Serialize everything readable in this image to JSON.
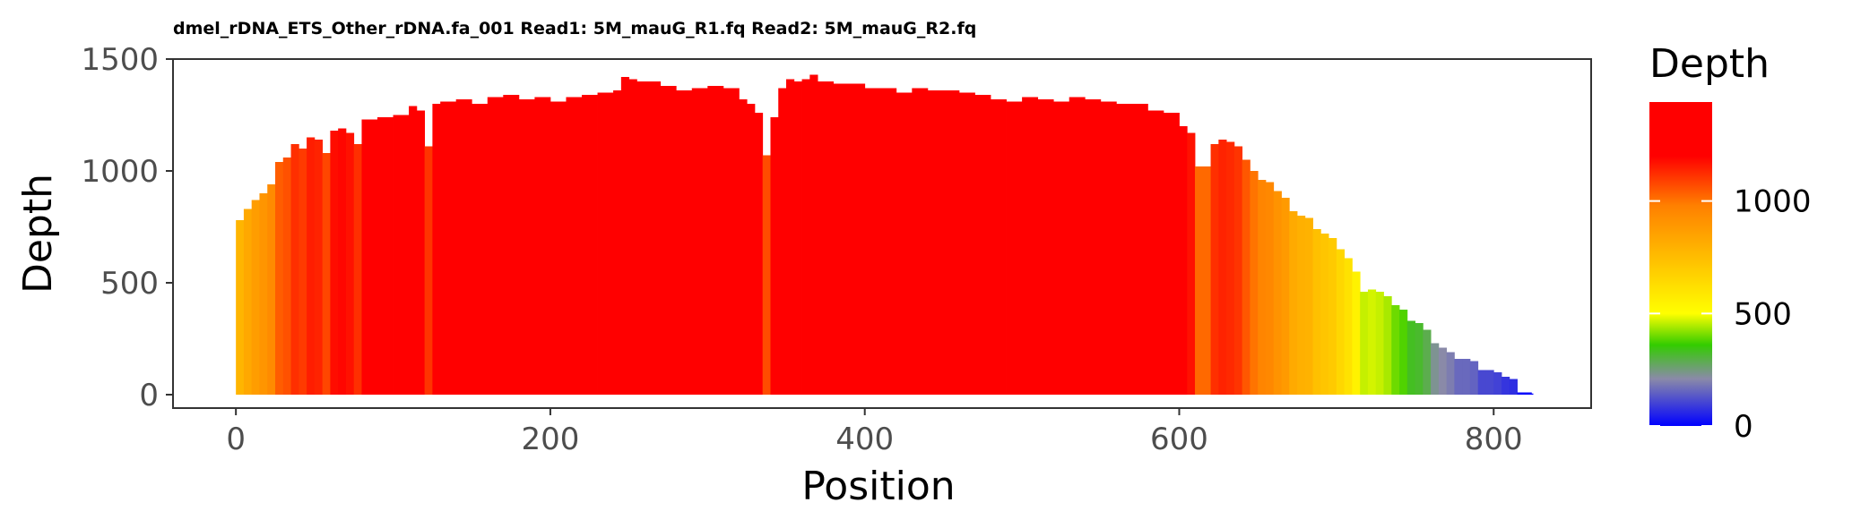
{
  "chart_data": {
    "type": "bar",
    "title": "dmel_rDNA_ETS_Other_rDNA.fa_001 Read1: 5M_mauG_R1.fq Read2: 5M_mauG_R2.fq",
    "xlabel": "Position",
    "ylabel": "Depth",
    "xlim": [
      -40,
      862
    ],
    "ylim": [
      -60,
      1500
    ],
    "x_ticks": [
      0,
      200,
      400,
      600,
      800
    ],
    "y_ticks": [
      0,
      500,
      1000,
      1500
    ],
    "x_tick_labels": [
      "0",
      "200",
      "400",
      "600",
      "800"
    ],
    "y_tick_labels": [
      "0",
      "500",
      "1000",
      "1500"
    ],
    "grid": false,
    "legend": {
      "title": "Depth",
      "placement": "right",
      "type": "colorbar",
      "range": [
        0,
        1440
      ],
      "ticks": [
        0,
        500,
        1000
      ],
      "tick_labels": [
        "0",
        "500",
        "1000"
      ],
      "color_stops": [
        {
          "value": 0,
          "color": "#0000ff"
        },
        {
          "value": 210,
          "color": "#8a8aa8"
        },
        {
          "value": 360,
          "color": "#33cc00"
        },
        {
          "value": 500,
          "color": "#ffff00"
        },
        {
          "value": 980,
          "color": "#ff8000"
        },
        {
          "value": 1200,
          "color": "#ff0000"
        },
        {
          "value": 1440,
          "color": "#ff0000"
        }
      ]
    },
    "series": [
      {
        "x": [
          0,
          5,
          10,
          15,
          20,
          25,
          30,
          35,
          40,
          45,
          50,
          55,
          60,
          65,
          70,
          75,
          80,
          90,
          100,
          110,
          115,
          120,
          125,
          130,
          140,
          150,
          160,
          170,
          180,
          190,
          200,
          210,
          220,
          230,
          240,
          245,
          250,
          255,
          260,
          270,
          280,
          290,
          300,
          310,
          320,
          325,
          330,
          335,
          340,
          345,
          350,
          355,
          360,
          365,
          370,
          380,
          390,
          400,
          410,
          420,
          430,
          440,
          450,
          460,
          470,
          480,
          490,
          500,
          510,
          520,
          530,
          540,
          550,
          560,
          570,
          580,
          590,
          600,
          605,
          610,
          615,
          620,
          625,
          630,
          635,
          640,
          645,
          650,
          655,
          660,
          665,
          670,
          675,
          680,
          685,
          690,
          695,
          700,
          705,
          710,
          715,
          720,
          725,
          730,
          735,
          740,
          745,
          750,
          755,
          760,
          765,
          770,
          775,
          780,
          785,
          790,
          795,
          800,
          805,
          810,
          815,
          820,
          824
        ],
        "values": [
          780,
          830,
          870,
          900,
          940,
          1040,
          1060,
          1120,
          1100,
          1150,
          1140,
          1080,
          1180,
          1190,
          1170,
          1120,
          1230,
          1240,
          1250,
          1290,
          1270,
          1110,
          1300,
          1310,
          1320,
          1300,
          1330,
          1340,
          1320,
          1330,
          1310,
          1330,
          1340,
          1350,
          1360,
          1420,
          1410,
          1400,
          1400,
          1380,
          1360,
          1370,
          1380,
          1370,
          1320,
          1300,
          1260,
          1070,
          1240,
          1370,
          1410,
          1400,
          1410,
          1430,
          1400,
          1390,
          1390,
          1370,
          1370,
          1350,
          1370,
          1360,
          1360,
          1350,
          1340,
          1320,
          1310,
          1330,
          1320,
          1310,
          1330,
          1320,
          1310,
          1300,
          1300,
          1270,
          1260,
          1200,
          1170,
          1020,
          1020,
          1120,
          1140,
          1130,
          1110,
          1050,
          1000,
          960,
          950,
          910,
          880,
          820,
          800,
          790,
          740,
          720,
          700,
          650,
          610,
          550,
          460,
          470,
          460,
          440,
          400,
          380,
          330,
          320,
          290,
          230,
          210,
          190,
          160,
          160,
          150,
          110,
          110,
          100,
          80,
          70,
          10,
          10,
          5
        ]
      }
    ]
  }
}
